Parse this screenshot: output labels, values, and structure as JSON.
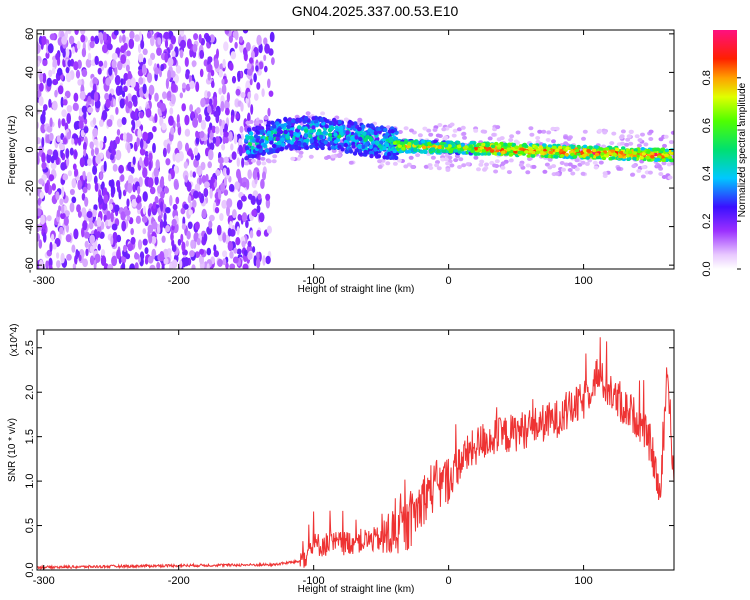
{
  "title": "GN04.2025.337.00.53.E10",
  "chart_data": [
    {
      "type": "heatmap",
      "name": "spectrogram",
      "xlabel": "Height of straight line (km)",
      "ylabel": "Frequency (Hz)",
      "xlim": [
        -305,
        167
      ],
      "ylim": [
        -62,
        62
      ],
      "xticks": [
        -300,
        -200,
        -100,
        0,
        100
      ],
      "yticks": [
        -60,
        -40,
        -20,
        0,
        20,
        40,
        60
      ],
      "colorbar": {
        "label": "Normalized spectral amplitude",
        "range": [
          0,
          1
        ],
        "ticks": [
          "0.0",
          "0.2",
          "0.4",
          "0.6",
          "0.8"
        ]
      },
      "regions": [
        {
          "name": "broadband noise",
          "x": [
            -305,
            -130
          ],
          "freq": [
            -62,
            62
          ],
          "amplitude": 0.15
        },
        {
          "name": "onset band",
          "x": [
            -150,
            -40
          ],
          "freq": [
            -10,
            15
          ],
          "amplitude": 0.45
        },
        {
          "name": "narrow band",
          "x": [
            -40,
            167
          ],
          "freq_center": [
            2,
            -3
          ],
          "amplitude": 0.9
        }
      ]
    },
    {
      "type": "line",
      "name": "snr",
      "xlabel": "Height of straight line (km)",
      "ylabel": "SNR (10 * v/v)",
      "y_multiplier": "(x10^4)",
      "xlim": [
        -305,
        167
      ],
      "ylim": [
        0,
        2.7
      ],
      "xticks": [
        -300,
        -200,
        -100,
        0,
        100
      ],
      "yticks": [
        "0.0",
        "0.5",
        "1.0",
        "1.5",
        "2.0",
        "2.5"
      ],
      "color": "#ee3333",
      "trend": {
        "x": [
          -305,
          -200,
          -130,
          -110,
          -100,
          -80,
          -50,
          -30,
          -15,
          0,
          10,
          25,
          50,
          80,
          100,
          110,
          125,
          140,
          150,
          157,
          162,
          167
        ],
        "y": [
          0.03,
          0.05,
          0.06,
          0.1,
          0.28,
          0.3,
          0.35,
          0.5,
          0.9,
          1.0,
          1.25,
          1.45,
          1.55,
          1.7,
          1.9,
          2.2,
          1.9,
          1.7,
          1.4,
          0.8,
          2.3,
          1.0
        ]
      }
    }
  ]
}
